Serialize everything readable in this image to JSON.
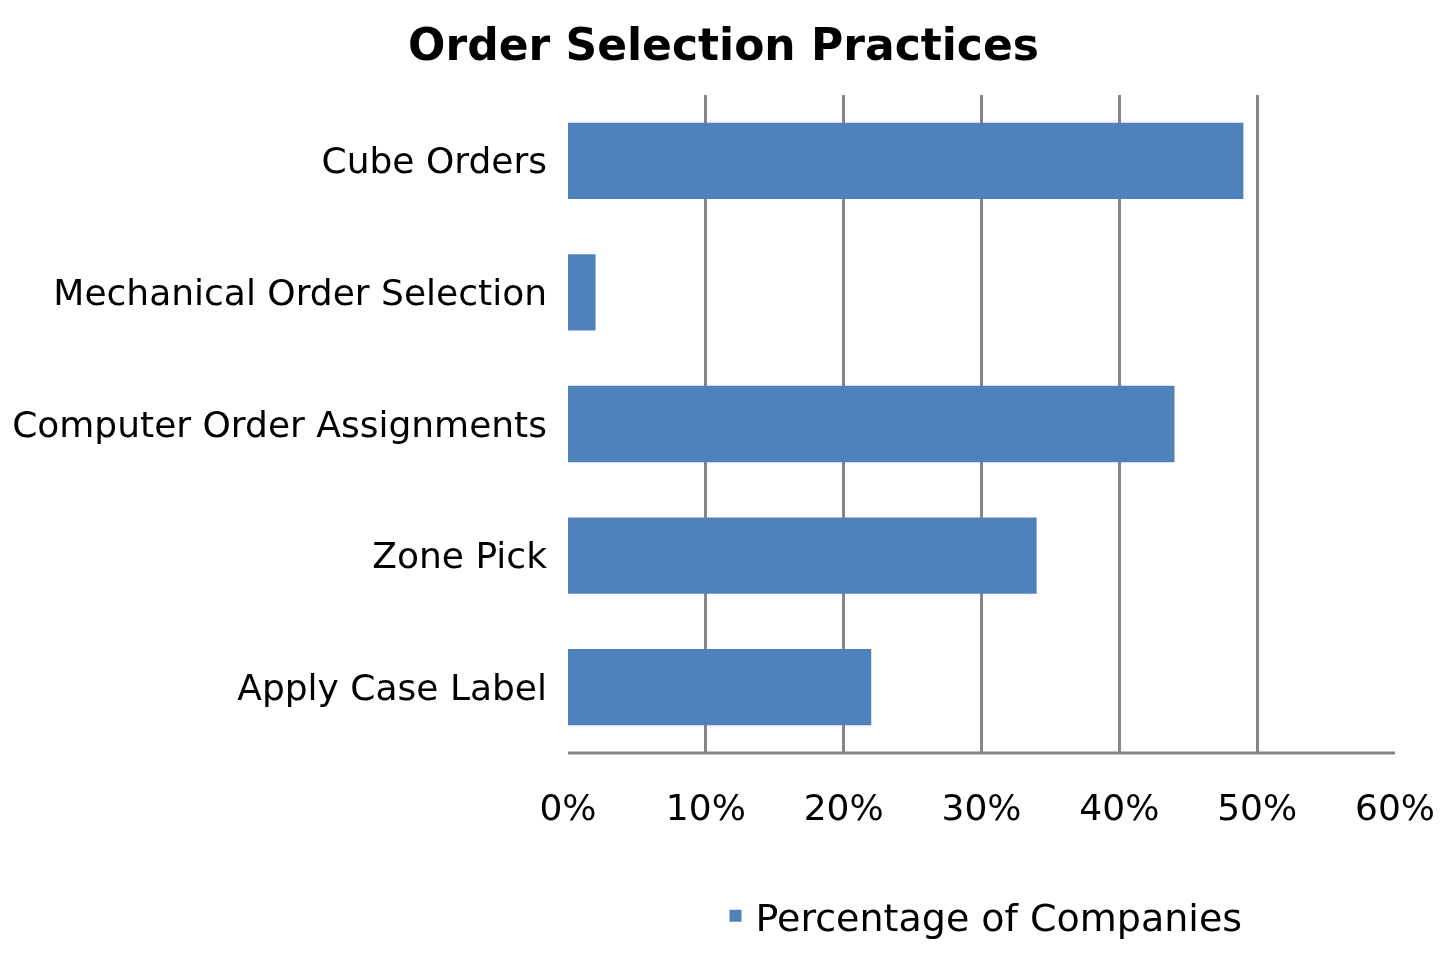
{
  "chart_data": {
    "type": "bar",
    "orientation": "horizontal",
    "title": "Order Selection Practices",
    "categories": [
      "Cube Orders",
      "Mechanical Order Selection",
      "Computer Order Assignments",
      "Zone Pick",
      "Apply Case Label"
    ],
    "series": [
      {
        "name": "Percentage of Companies",
        "color": "#4f81bd",
        "values": [
          49,
          2,
          44,
          34,
          22
        ]
      }
    ],
    "xlim": [
      0,
      60
    ],
    "xticks": [
      {
        "value": 0,
        "label": "0%"
      },
      {
        "value": 10,
        "label": "10%"
      },
      {
        "value": 20,
        "label": "20%"
      },
      {
        "value": 30,
        "label": "30%"
      },
      {
        "value": 40,
        "label": "40%"
      },
      {
        "value": 50,
        "label": "50%"
      },
      {
        "value": 60,
        "label": "60%"
      }
    ],
    "grid": "x",
    "legend": "bottom"
  }
}
